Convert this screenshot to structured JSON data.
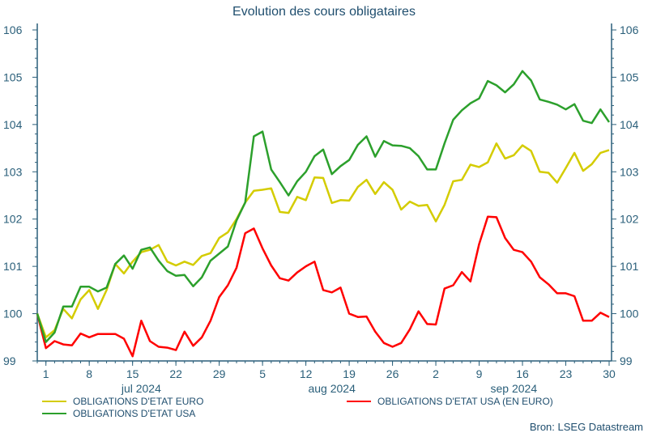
{
  "chart_data": {
    "type": "line",
    "title": "Evolution des cours obligataires",
    "ylim": [
      99,
      106
    ],
    "yticks": [
      "99",
      "100",
      "101",
      "102",
      "103",
      "104",
      "105",
      "106"
    ],
    "grid": false,
    "legend_placement": "bottom",
    "x": [
      "2024-06-28",
      "2024-07-01",
      "2024-07-02",
      "2024-07-03",
      "2024-07-04",
      "2024-07-05",
      "2024-07-08",
      "2024-07-09",
      "2024-07-10",
      "2024-07-11",
      "2024-07-12",
      "2024-07-15",
      "2024-07-16",
      "2024-07-17",
      "2024-07-18",
      "2024-07-19",
      "2024-07-22",
      "2024-07-23",
      "2024-07-24",
      "2024-07-25",
      "2024-07-26",
      "2024-07-29",
      "2024-07-30",
      "2024-07-31",
      "2024-08-01",
      "2024-08-02",
      "2024-08-05",
      "2024-08-06",
      "2024-08-07",
      "2024-08-08",
      "2024-08-09",
      "2024-08-12",
      "2024-08-13",
      "2024-08-14",
      "2024-08-15",
      "2024-08-16",
      "2024-08-19",
      "2024-08-20",
      "2024-08-21",
      "2024-08-22",
      "2024-08-23",
      "2024-08-26",
      "2024-08-27",
      "2024-08-28",
      "2024-08-29",
      "2024-08-30",
      "2024-09-02",
      "2024-09-03",
      "2024-09-04",
      "2024-09-05",
      "2024-09-06",
      "2024-09-09",
      "2024-09-10",
      "2024-09-11",
      "2024-09-12",
      "2024-09-13",
      "2024-09-16",
      "2024-09-17",
      "2024-09-18",
      "2024-09-19",
      "2024-09-20",
      "2024-09-23",
      "2024-09-24",
      "2024-09-25",
      "2024-09-26",
      "2024-09-27",
      "2024-09-30"
    ],
    "xticks": [
      {
        "date": "2024-07-01",
        "label": "1"
      },
      {
        "date": "2024-07-08",
        "label": "8"
      },
      {
        "date": "2024-07-15",
        "label": "15"
      },
      {
        "date": "2024-07-22",
        "label": "22"
      },
      {
        "date": "2024-07-29",
        "label": "29"
      },
      {
        "date": "2024-08-05",
        "label": "5"
      },
      {
        "date": "2024-08-12",
        "label": "12"
      },
      {
        "date": "2024-08-19",
        "label": "19"
      },
      {
        "date": "2024-08-26",
        "label": "26"
      },
      {
        "date": "2024-09-02",
        "label": "2"
      },
      {
        "date": "2024-09-09",
        "label": "9"
      },
      {
        "date": "2024-09-16",
        "label": "16"
      },
      {
        "date": "2024-09-23",
        "label": "23"
      },
      {
        "date": "2024-09-30",
        "label": "30"
      }
    ],
    "month_labels": [
      {
        "date": "2024-07-16",
        "label": "jul 2024"
      },
      {
        "date": "2024-08-15",
        "label": "aug 2024"
      },
      {
        "date": "2024-09-13",
        "label": "sep 2024"
      }
    ],
    "series": [
      {
        "name": "OBLIGATIONS D'ETAT EURO",
        "color": "#d4cc00",
        "values": [
          100,
          99.5,
          99.65,
          100.1,
          99.9,
          100.3,
          100.5,
          100.1,
          100.5,
          101.05,
          100.85,
          101.1,
          101.3,
          101.35,
          101.45,
          101.1,
          101.02,
          101.1,
          101.03,
          101.22,
          101.28,
          101.6,
          101.72,
          102.0,
          102.35,
          102.6,
          102.62,
          102.65,
          102.15,
          102.13,
          102.47,
          102.4,
          102.88,
          102.87,
          102.34,
          102.4,
          102.39,
          102.68,
          102.83,
          102.53,
          102.78,
          102.62,
          102.2,
          102.37,
          102.28,
          102.3,
          101.95,
          102.3,
          102.8,
          102.83,
          103.15,
          103.1,
          103.2,
          103.6,
          103.28,
          103.35,
          103.56,
          103.44,
          103.0,
          102.98,
          102.77,
          103.08,
          103.4,
          103.02,
          103.16,
          103.4,
          103.46
        ]
      },
      {
        "name": "OBLIGATIONS D'ETAT USA",
        "color": "#2ca02c",
        "values": [
          100,
          99.4,
          99.6,
          100.15,
          100.15,
          100.57,
          100.57,
          100.47,
          100.55,
          101.05,
          101.23,
          100.95,
          101.35,
          101.4,
          101.12,
          100.9,
          100.8,
          100.82,
          100.58,
          100.77,
          101.12,
          101.27,
          101.42,
          101.97,
          102.35,
          103.75,
          103.85,
          103.05,
          102.78,
          102.5,
          102.8,
          103.0,
          103.33,
          103.47,
          102.95,
          103.12,
          103.25,
          103.57,
          103.75,
          103.32,
          103.65,
          103.56,
          103.55,
          103.5,
          103.33,
          103.05,
          103.05,
          103.6,
          104.1,
          104.3,
          104.45,
          104.55,
          104.92,
          104.83,
          104.68,
          104.85,
          105.13,
          104.93,
          104.53,
          104.48,
          104.42,
          104.32,
          104.43,
          104.08,
          104.03,
          104.32,
          104.05
        ]
      },
      {
        "name": "OBLIGATIONS D'ETAT USA (EN EURO)",
        "color": "#ff0000",
        "values": [
          100,
          99.27,
          99.42,
          99.35,
          99.33,
          99.58,
          99.5,
          99.57,
          99.57,
          99.57,
          99.47,
          99.1,
          99.85,
          99.42,
          99.3,
          99.28,
          99.23,
          99.62,
          99.32,
          99.5,
          99.85,
          100.35,
          100.6,
          100.97,
          101.7,
          101.8,
          101.38,
          101.02,
          100.75,
          100.7,
          100.87,
          101.0,
          101.1,
          100.5,
          100.45,
          100.55,
          100.0,
          99.93,
          99.94,
          99.62,
          99.38,
          99.3,
          99.38,
          99.67,
          100.05,
          99.78,
          99.77,
          100.53,
          100.6,
          100.88,
          100.68,
          101.47,
          102.05,
          102.04,
          101.6,
          101.35,
          101.3,
          101.1,
          100.77,
          100.62,
          100.43,
          100.43,
          100.37,
          99.85,
          99.85,
          100.02,
          99.93
        ]
      }
    ]
  },
  "source": "Bron: LSEG Datastream"
}
